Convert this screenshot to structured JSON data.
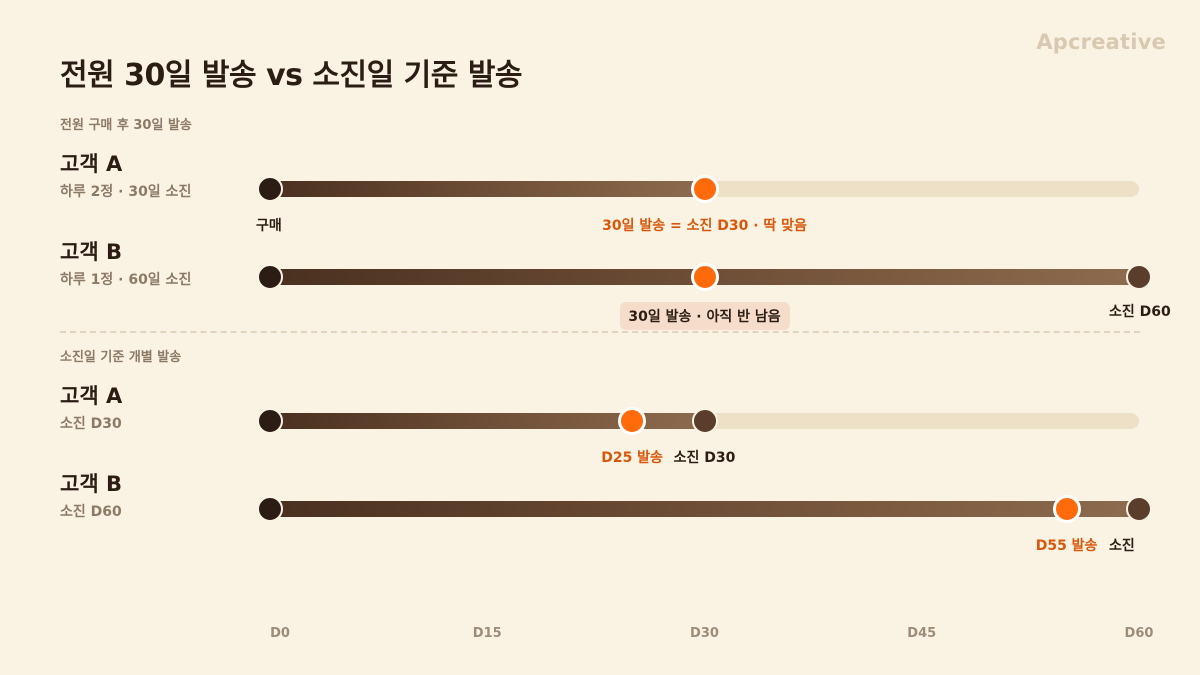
{
  "brand": "Apcreative",
  "title": "전원 30일 발송 vs 소진일 기준 발송",
  "section1": {
    "label": "전원 구매 후 30일 발송",
    "customers": [
      {
        "name": "고객 A",
        "sub": "하루 2정 · 30일 소진",
        "fill_end_day": 30,
        "send_day": 30,
        "start_label": "구매",
        "send_label": "30일 발송 = 소진 D30 · 딱 맞음"
      },
      {
        "name": "고객 B",
        "sub": "하루 1정 · 60일 소진",
        "fill_end_day": 60,
        "send_day": 30,
        "send_label": "30일 발송 · 아직 반 남음",
        "end_label": "소진 D60"
      }
    ]
  },
  "section2": {
    "label": "소진일 기준 개별 발송",
    "customers": [
      {
        "name": "고객 A",
        "sub": "소진 D30",
        "fill_end_day": 30,
        "send_day": 25,
        "send_label": "D25 발송",
        "end_label": "소진 D30"
      },
      {
        "name": "고객 B",
        "sub": "소진 D60",
        "fill_end_day": 60,
        "send_day": 55,
        "send_label": "D55 발송",
        "end_label": "소진"
      }
    ]
  },
  "axis": {
    "ticks": [
      "D0",
      "D15",
      "D30",
      "D45",
      "D60"
    ],
    "values": [
      0,
      15,
      30,
      45,
      60
    ]
  },
  "colors": {
    "background": "#faf3e3",
    "fill_start": "#4a3020",
    "fill_end": "#8d6b4e",
    "track": "#eee0c6",
    "send_dot": "#ff6a0a",
    "send_label": "#d9570a"
  }
}
